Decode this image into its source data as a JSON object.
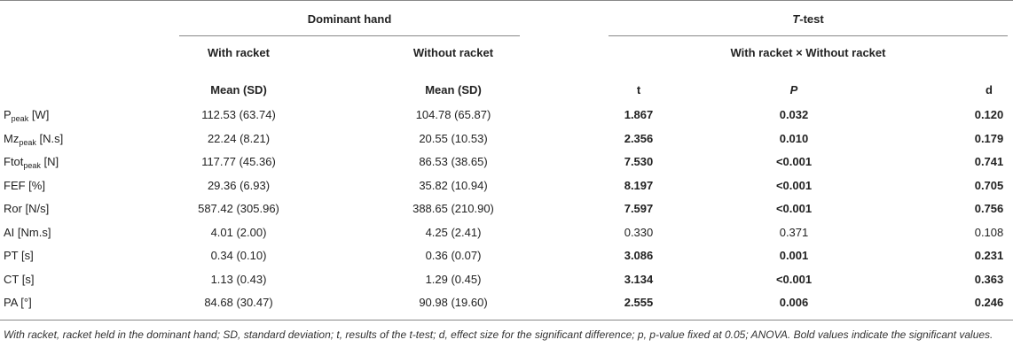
{
  "header": {
    "group1": "Dominant hand",
    "group2_italic": "T",
    "group2_rest": "-test",
    "col_with": "With racket",
    "col_without": "Without racket",
    "col_compare": "With racket × Without racket",
    "stat_mean1": "Mean (SD)",
    "stat_mean2": "Mean (SD)",
    "stat_t": "t",
    "stat_p": "P",
    "stat_d": "d"
  },
  "rows": [
    {
      "label_main": "P",
      "label_sub": "peak",
      "label_unit": " [W]",
      "with": "112.53 (63.74)",
      "without": "104.78 (65.87)",
      "t": "1.867",
      "p": "0.032",
      "d": "0.120",
      "bold": true
    },
    {
      "label_main": "Mz",
      "label_sub": "peak",
      "label_unit": " [N.s]",
      "with": "22.24 (8.21)",
      "without": "20.55 (10.53)",
      "t": "2.356",
      "p": "0.010",
      "d": "0.179",
      "bold": true
    },
    {
      "label_main": "Ftot",
      "label_sub": "peak",
      "label_unit": " [N]",
      "with": "117.77 (45.36)",
      "without": "86.53 (38.65)",
      "t": "7.530",
      "p": "<0.001",
      "d": "0.741",
      "bold": true
    },
    {
      "label_main": "FEF [%]",
      "label_sub": "",
      "label_unit": "",
      "with": "29.36 (6.93)",
      "without": "35.82 (10.94)",
      "t": "8.197",
      "p": "<0.001",
      "d": "0.705",
      "bold": true
    },
    {
      "label_main": "Ror [N/s]",
      "label_sub": "",
      "label_unit": "",
      "with": "587.42 (305.96)",
      "without": "388.65 (210.90)",
      "t": "7.597",
      "p": "<0.001",
      "d": "0.756",
      "bold": true
    },
    {
      "label_main": "AI [Nm.s]",
      "label_sub": "",
      "label_unit": "",
      "with": "4.01 (2.00)",
      "without": "4.25 (2.41)",
      "t": "0.330",
      "p": "0.371",
      "d": "0.108",
      "bold": false
    },
    {
      "label_main": "PT [s]",
      "label_sub": "",
      "label_unit": "",
      "with": "0.34 (0.10)",
      "without": "0.36 (0.07)",
      "t": "3.086",
      "p": "0.001",
      "d": "0.231",
      "bold": true
    },
    {
      "label_main": "CT [s]",
      "label_sub": "",
      "label_unit": "",
      "with": "1.13 (0.43)",
      "without": "1.29 (0.45)",
      "t": "3.134",
      "p": "<0.001",
      "d": "0.363",
      "bold": true
    },
    {
      "label_main": "PA [°]",
      "label_sub": "",
      "label_unit": "",
      "with": "84.68 (30.47)",
      "without": "90.98 (19.60)",
      "t": "2.555",
      "p": "0.006",
      "d": "0.246",
      "bold": true
    }
  ],
  "footnote": "With racket, racket held in the dominant hand; SD, standard deviation; t, results of the t-test; d, effect size for the significant difference; p, p-value fixed at 0.05; ANOVA. Bold values indicate the significant values."
}
